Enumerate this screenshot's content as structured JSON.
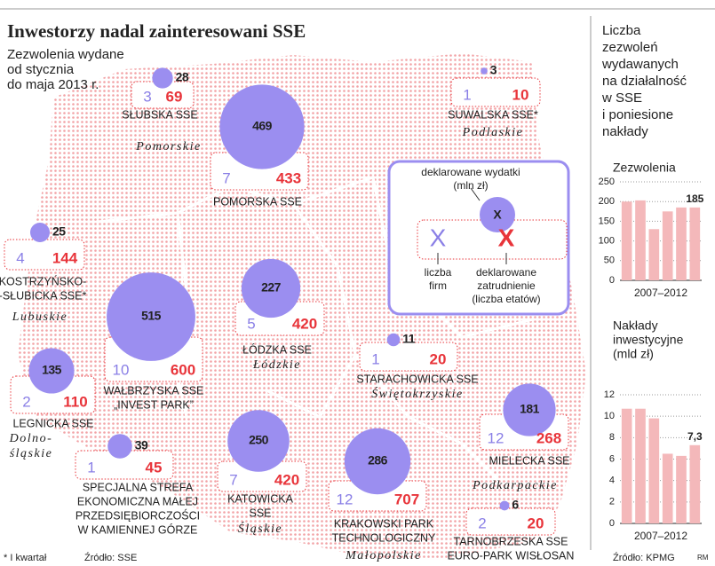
{
  "header": {
    "title": "Inwestorzy nadal zainteresowani SSE",
    "subtitle": [
      "Zezwolenia wydane",
      "od stycznia",
      "do maja 2013 r."
    ]
  },
  "map": {
    "zones": [
      {
        "name": [
          "SŁUBSKA SSE"
        ],
        "bubble": 28,
        "firms": 3,
        "jobs": 69
      },
      {
        "name": [
          "POMORSKA SSE"
        ],
        "bubble": 469,
        "firms": 7,
        "jobs": 433
      },
      {
        "name": [
          "SUWALSKA SSE*"
        ],
        "bubble": 3,
        "firms": 1,
        "jobs": 10
      },
      {
        "name": [
          "KOSTRZYŃSKO-",
          "-SŁUBICKA SSE*"
        ],
        "bubble": 25,
        "firms": 4,
        "jobs": 144
      },
      {
        "name": [
          "WAŁBRZYSKA SSE",
          "„INVEST PARK”"
        ],
        "bubble": 515,
        "firms": 10,
        "jobs": 600
      },
      {
        "name": [
          "ŁÓDZKA SSE"
        ],
        "bubble": 227,
        "firms": 5,
        "jobs": 420
      },
      {
        "name": [
          "STARACHOWICKA SSE"
        ],
        "bubble": 11,
        "firms": 1,
        "jobs": 20
      },
      {
        "name": [
          "LEGNICKA SSE"
        ],
        "bubble": 135,
        "firms": 2,
        "jobs": 110
      },
      {
        "name": [
          "MIELECKA SSE"
        ],
        "bubble": 181,
        "firms": 12,
        "jobs": 268
      },
      {
        "name": [
          "SPECJALNA STREFA",
          "EKONOMICZNA MAŁEJ",
          "PRZEDSIĘBIORCZOŚCI",
          "W KAMIENNEJ GÓRZE"
        ],
        "bubble": 39,
        "firms": 1,
        "jobs": 45
      },
      {
        "name": [
          "KATOWICKA",
          "SSE"
        ],
        "bubble": 250,
        "firms": 7,
        "jobs": 420
      },
      {
        "name": [
          "KRAKOWSKI PARK",
          "TECHNOLOGICZNY"
        ],
        "bubble": 286,
        "firms": 12,
        "jobs": 707
      },
      {
        "name": [
          "TARNOBRZESKA SSE",
          "EURO-PARK WISŁOSAN"
        ],
        "bubble": 6,
        "firms": 2,
        "jobs": 20
      }
    ],
    "regions": [
      [
        "Pomorskie"
      ],
      [
        "Podlaskie"
      ],
      [
        "Lubuskie"
      ],
      [
        "Łódzkie"
      ],
      [
        "Świętokrzyskie"
      ],
      [
        "Dolno-",
        "śląskie"
      ],
      [
        "Podkarpackie"
      ],
      [
        "Śląskie"
      ],
      [
        "Małopolskie"
      ]
    ],
    "legend": {
      "bubble_label": [
        "deklarowane wydatki",
        "(mln zł)"
      ],
      "bubble_symbol": "X",
      "firms_symbol": "X",
      "jobs_symbol": "X",
      "firms_label": [
        "liczba",
        "firm"
      ],
      "jobs_label": [
        "deklarowane",
        "zatrudnienie",
        "(liczba etatów)"
      ]
    }
  },
  "side_title": [
    "Liczba",
    "zezwoleń",
    "wydawanych",
    "na działalność",
    "w SSE",
    "i poniesione",
    "nakłady"
  ],
  "chart_data": [
    {
      "type": "bar",
      "title": [
        "Zezwolenia"
      ],
      "categories": [
        null,
        null,
        null,
        null,
        null,
        null
      ],
      "xlabel": "2007–2012",
      "values": [
        200,
        203,
        130,
        175,
        185,
        185
      ],
      "value_labels": [
        null,
        null,
        null,
        null,
        null,
        "185"
      ],
      "color": "#f4b8ba",
      "ylim": [
        0,
        250
      ],
      "yticks": [
        0,
        50,
        100,
        150,
        200,
        250
      ],
      "grid": true
    },
    {
      "type": "bar",
      "title": [
        "Nakłady",
        "inwestycyjne",
        "(mld zł)"
      ],
      "categories": [
        null,
        null,
        null,
        null,
        null,
        null
      ],
      "xlabel": "2007–2012",
      "values": [
        10.7,
        10.7,
        9.8,
        6.5,
        6.3,
        7.3
      ],
      "value_labels": [
        null,
        null,
        null,
        null,
        null,
        "7,3"
      ],
      "color": "#f4b8ba",
      "ylim": [
        0,
        12
      ],
      "yticks": [
        0,
        2,
        4,
        6,
        8,
        10,
        12
      ],
      "grid": true
    }
  ],
  "footer": {
    "note": "* I kwartał",
    "source_left": "Źródło: SSE",
    "source_right": "Źródło: KPMG",
    "author": "RM"
  }
}
